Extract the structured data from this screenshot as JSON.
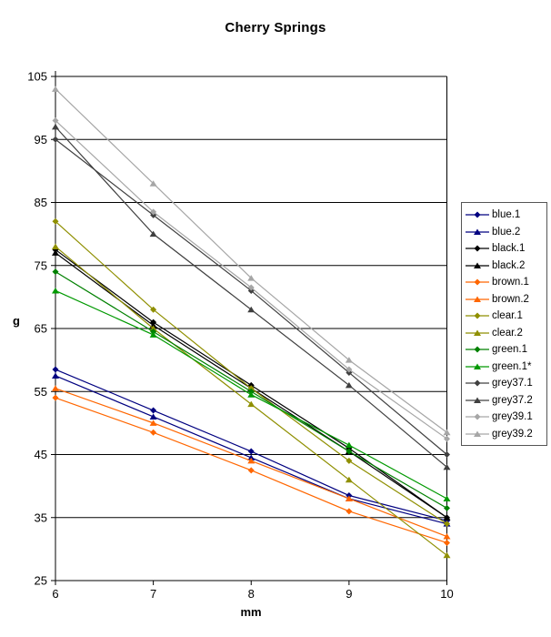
{
  "title": "Cherry Springs",
  "chart_data": {
    "type": "line",
    "title": "Cherry Springs",
    "xlabel": "mm",
    "ylabel": "g",
    "x": [
      6,
      7,
      8,
      9,
      10
    ],
    "xticks": [
      6,
      7,
      8,
      9,
      10
    ],
    "yticks": [
      25,
      35,
      45,
      55,
      65,
      75,
      85,
      95,
      105
    ],
    "xlim": [
      6,
      10
    ],
    "ylim": [
      25,
      105
    ],
    "grid": "horizontal",
    "legend_position": "right",
    "series": [
      {
        "name": "blue.1",
        "color": "#000080",
        "marker": "diamond",
        "values": [
          58.5,
          52,
          45.5,
          38.5,
          34.5
        ]
      },
      {
        "name": "blue.2",
        "color": "#000080",
        "marker": "triangle",
        "values": [
          57.5,
          51,
          44.5,
          38,
          34
        ]
      },
      {
        "name": "black.1",
        "color": "#000000",
        "marker": "diamond",
        "values": [
          77.5,
          66,
          56,
          46,
          35
        ]
      },
      {
        "name": "black.2",
        "color": "#000000",
        "marker": "triangle",
        "values": [
          77,
          65.5,
          55.5,
          45.5,
          35
        ]
      },
      {
        "name": "brown.1",
        "color": "#FF6600",
        "marker": "diamond",
        "values": [
          54,
          48.5,
          42.5,
          36,
          31
        ]
      },
      {
        "name": "brown.2",
        "color": "#FF6600",
        "marker": "triangle",
        "values": [
          55.5,
          50,
          44,
          38,
          32
        ]
      },
      {
        "name": "clear.1",
        "color": "#8F8F00",
        "marker": "diamond",
        "values": [
          82,
          68,
          55.5,
          44,
          34
        ]
      },
      {
        "name": "clear.2",
        "color": "#8F8F00",
        "marker": "triangle",
        "values": [
          78,
          65,
          53,
          41,
          29
        ]
      },
      {
        "name": "green.1",
        "color": "#008000",
        "marker": "diamond",
        "values": [
          74,
          64.5,
          55,
          45.5,
          36.5
        ]
      },
      {
        "name": "green.1*",
        "color": "#009900",
        "marker": "triangle",
        "values": [
          71,
          64,
          54.5,
          46.5,
          38
        ]
      },
      {
        "name": "grey37.1",
        "color": "#404040",
        "marker": "diamond",
        "values": [
          95,
          83,
          71,
          58,
          45
        ]
      },
      {
        "name": "grey37.2",
        "color": "#404040",
        "marker": "triangle",
        "values": [
          97,
          80,
          68,
          56,
          43
        ]
      },
      {
        "name": "grey39.1",
        "color": "#A6A6A6",
        "marker": "diamond",
        "values": [
          98,
          83.5,
          71.5,
          58.5,
          47.5
        ]
      },
      {
        "name": "grey39.2",
        "color": "#A6A6A6",
        "marker": "triangle",
        "values": [
          103,
          88,
          73,
          60,
          48.5
        ]
      }
    ]
  }
}
